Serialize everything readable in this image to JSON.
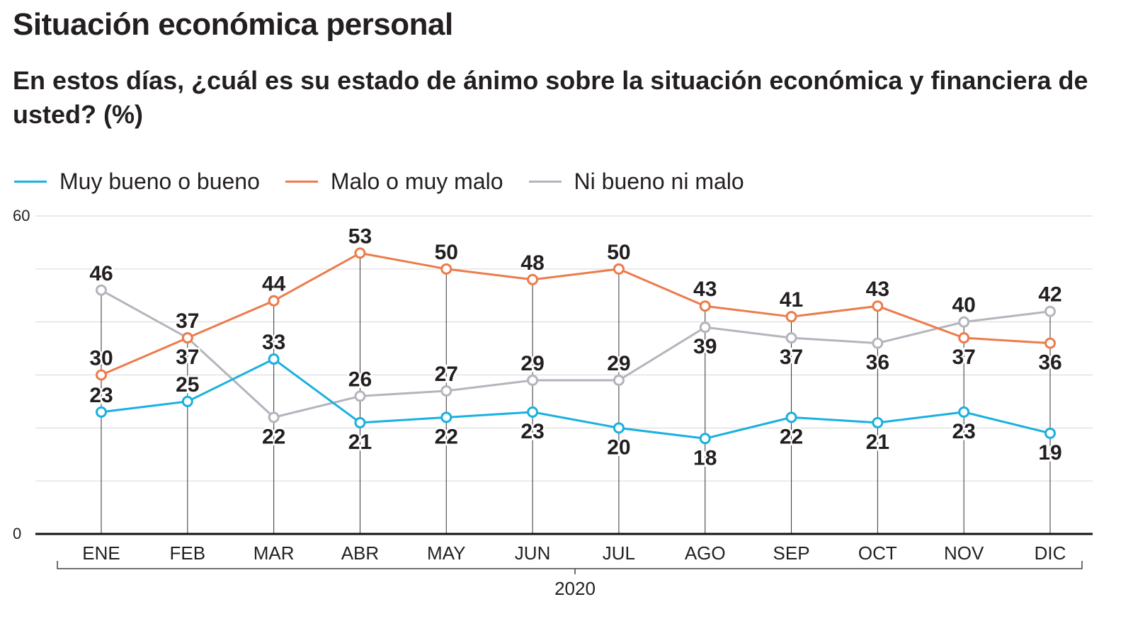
{
  "header": {
    "title": "Situación económica personal",
    "subtitle": "En estos días, ¿cuál es su estado de ánimo sobre la situación económica y financiera de usted? (%)"
  },
  "colors": {
    "positive": "#1ab0e0",
    "negative": "#ec7b4b",
    "neutral": "#b4b4bd",
    "label": "#231f20",
    "grid": "#d6d6d6",
    "axis": "#111111"
  },
  "chart_data": {
    "type": "line",
    "title": "",
    "xlabel": "2020",
    "ylabel": "",
    "ylim": [
      0,
      60
    ],
    "ytick_labels": [
      "0",
      "60"
    ],
    "gridlines": [
      10,
      20,
      30,
      40,
      50,
      60
    ],
    "grid": true,
    "legend_position": "top-left",
    "categories": [
      "ENE",
      "FEB",
      "MAR",
      "ABR",
      "MAY",
      "JUN",
      "JUL",
      "AGO",
      "SEP",
      "OCT",
      "NOV",
      "DIC"
    ],
    "series": [
      {
        "name": "Muy bueno o bueno",
        "color": "#1ab0e0",
        "values": [
          23,
          25,
          33,
          21,
          22,
          23,
          20,
          18,
          22,
          21,
          23,
          19
        ],
        "label_side": [
          "above",
          "above",
          "above",
          "below",
          "below",
          "below",
          "below",
          "below",
          "below",
          "below",
          "below",
          "below"
        ]
      },
      {
        "name": "Malo o muy malo",
        "color": "#ec7b4b",
        "values": [
          30,
          37,
          44,
          53,
          50,
          48,
          50,
          43,
          41,
          43,
          37,
          36
        ],
        "label_side": [
          "above",
          "above",
          "above",
          "above",
          "above",
          "above",
          "above",
          "above",
          "above",
          "above",
          "below",
          "below"
        ]
      },
      {
        "name": "Ni bueno ni malo",
        "color": "#b4b4bd",
        "values": [
          46,
          37,
          22,
          26,
          27,
          29,
          29,
          39,
          37,
          36,
          40,
          42
        ],
        "label_side": [
          "above",
          "below",
          "below",
          "above",
          "above",
          "above",
          "above",
          "below",
          "below",
          "below",
          "above",
          "above"
        ]
      }
    ]
  }
}
